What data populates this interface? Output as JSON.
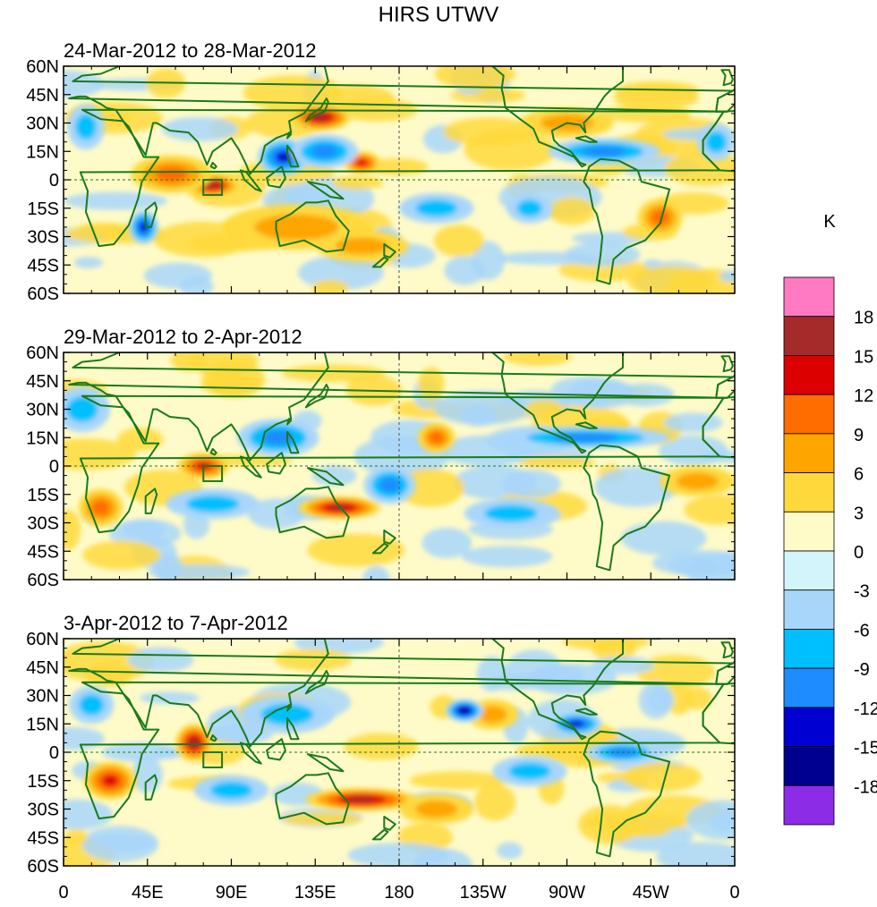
{
  "chart_data": {
    "type": "heatmap",
    "title": "HIRS UTWV",
    "units_label": "K",
    "xticks": [
      "0",
      "45E",
      "90E",
      "135E",
      "180",
      "135W",
      "90W",
      "45W",
      "0"
    ],
    "xtick_values": [
      0,
      45,
      90,
      135,
      180,
      225,
      270,
      315,
      360
    ],
    "yticks": [
      "60N",
      "45N",
      "30N",
      "15N",
      "0",
      "15S",
      "30S",
      "45S",
      "60S"
    ],
    "ytick_values": [
      60,
      45,
      30,
      15,
      0,
      -15,
      -30,
      -45,
      -60
    ],
    "xlim": [
      0,
      360
    ],
    "ylim": [
      -60,
      60
    ],
    "panels": [
      {
        "subtitle": "24-Mar-2012 to 28-Mar-2012",
        "features": [
          {
            "lon": 138,
            "lat": 33,
            "value": 15,
            "rx": 16,
            "ry": 7
          },
          {
            "lon": 160,
            "lat": 9,
            "value": 12,
            "rx": 10,
            "ry": 6
          },
          {
            "lon": 80,
            "lat": -3,
            "value": 15,
            "rx": 14,
            "ry": 6
          },
          {
            "lon": 58,
            "lat": 3,
            "value": 9,
            "rx": 22,
            "ry": 10
          },
          {
            "lon": 125,
            "lat": -25,
            "value": 6,
            "rx": 40,
            "ry": 12
          },
          {
            "lon": 160,
            "lat": -35,
            "value": 6,
            "rx": 25,
            "ry": 8
          },
          {
            "lon": 320,
            "lat": -20,
            "value": 9,
            "rx": 12,
            "ry": 10
          },
          {
            "lon": 270,
            "lat": 30,
            "value": 6,
            "rx": 25,
            "ry": 8
          },
          {
            "lon": 118,
            "lat": 12,
            "value": -12,
            "rx": 14,
            "ry": 10
          },
          {
            "lon": 140,
            "lat": 15,
            "value": -9,
            "rx": 18,
            "ry": 9
          },
          {
            "lon": 43,
            "lat": -25,
            "value": -12,
            "rx": 8,
            "ry": 9
          },
          {
            "lon": 290,
            "lat": 15,
            "value": -9,
            "rx": 30,
            "ry": 7
          },
          {
            "lon": 12,
            "lat": 28,
            "value": -6,
            "rx": 10,
            "ry": 12
          },
          {
            "lon": 350,
            "lat": 20,
            "value": -6,
            "rx": 10,
            "ry": 10
          },
          {
            "lon": 200,
            "lat": -15,
            "value": -6,
            "rx": 20,
            "ry": 8
          },
          {
            "lon": 250,
            "lat": -15,
            "value": -6,
            "rx": 12,
            "ry": 8
          }
        ]
      },
      {
        "subtitle": "29-Mar-2012 to 2-Apr-2012",
        "features": [
          {
            "lon": 148,
            "lat": -22,
            "value": 15,
            "rx": 22,
            "ry": 6
          },
          {
            "lon": 75,
            "lat": 0,
            "value": 12,
            "rx": 14,
            "ry": 7
          },
          {
            "lon": 200,
            "lat": 15,
            "value": 9,
            "rx": 10,
            "ry": 8
          },
          {
            "lon": 20,
            "lat": -22,
            "value": 9,
            "rx": 12,
            "ry": 10
          },
          {
            "lon": 340,
            "lat": -8,
            "value": 6,
            "rx": 20,
            "ry": 8
          },
          {
            "lon": 115,
            "lat": 15,
            "value": -9,
            "rx": 22,
            "ry": 10
          },
          {
            "lon": 280,
            "lat": 15,
            "value": -9,
            "rx": 45,
            "ry": 6
          },
          {
            "lon": 80,
            "lat": -20,
            "value": -6,
            "rx": 25,
            "ry": 8
          },
          {
            "lon": 175,
            "lat": -10,
            "value": -9,
            "rx": 14,
            "ry": 10
          },
          {
            "lon": 10,
            "lat": 30,
            "value": -6,
            "rx": 15,
            "ry": 12
          },
          {
            "lon": 240,
            "lat": -25,
            "value": -6,
            "rx": 25,
            "ry": 8
          }
        ]
      },
      {
        "subtitle": "3-Apr-2012 to 7-Apr-2012",
        "features": [
          {
            "lon": 70,
            "lat": 5,
            "value": 15,
            "rx": 10,
            "ry": 10
          },
          {
            "lon": 160,
            "lat": -25,
            "value": 15,
            "rx": 30,
            "ry": 6
          },
          {
            "lon": 25,
            "lat": -15,
            "value": 12,
            "rx": 14,
            "ry": 10
          },
          {
            "lon": 230,
            "lat": 20,
            "value": 6,
            "rx": 14,
            "ry": 8
          },
          {
            "lon": 200,
            "lat": -30,
            "value": 6,
            "rx": 20,
            "ry": 8
          },
          {
            "lon": 215,
            "lat": 22,
            "value": -15,
            "rx": 10,
            "ry": 6
          },
          {
            "lon": 275,
            "lat": 15,
            "value": -12,
            "rx": 14,
            "ry": 6
          },
          {
            "lon": 120,
            "lat": 20,
            "value": -6,
            "rx": 25,
            "ry": 10
          },
          {
            "lon": 90,
            "lat": -20,
            "value": -6,
            "rx": 20,
            "ry": 8
          },
          {
            "lon": 300,
            "lat": 0,
            "value": -9,
            "rx": 20,
            "ry": 6
          },
          {
            "lon": 250,
            "lat": -10,
            "value": -6,
            "rx": 20,
            "ry": 8
          },
          {
            "lon": 15,
            "lat": 25,
            "value": -6,
            "rx": 12,
            "ry": 10
          }
        ]
      }
    ],
    "colorbar": {
      "labels": [
        "18",
        "15",
        "12",
        "9",
        "6",
        "3",
        "0",
        "-3",
        "-6",
        "-9",
        "-12",
        "-15",
        "-18"
      ],
      "levels": [
        18,
        15,
        12,
        9,
        6,
        3,
        0,
        -3,
        -6,
        -9,
        -12,
        -15,
        -18
      ],
      "colors": [
        "#ff7ac2",
        "#a52a2a",
        "#dc0000",
        "#ff6c00",
        "#ffa500",
        "#ffd93c",
        "#fffbc8",
        "#d4f4fc",
        "#a8d6fa",
        "#00bfff",
        "#1e8cff",
        "#0000d2",
        "#000090",
        "#8c2ce6"
      ]
    },
    "colors": {
      "coast": "#1a7a1a",
      "background": "#fffbc8"
    }
  }
}
